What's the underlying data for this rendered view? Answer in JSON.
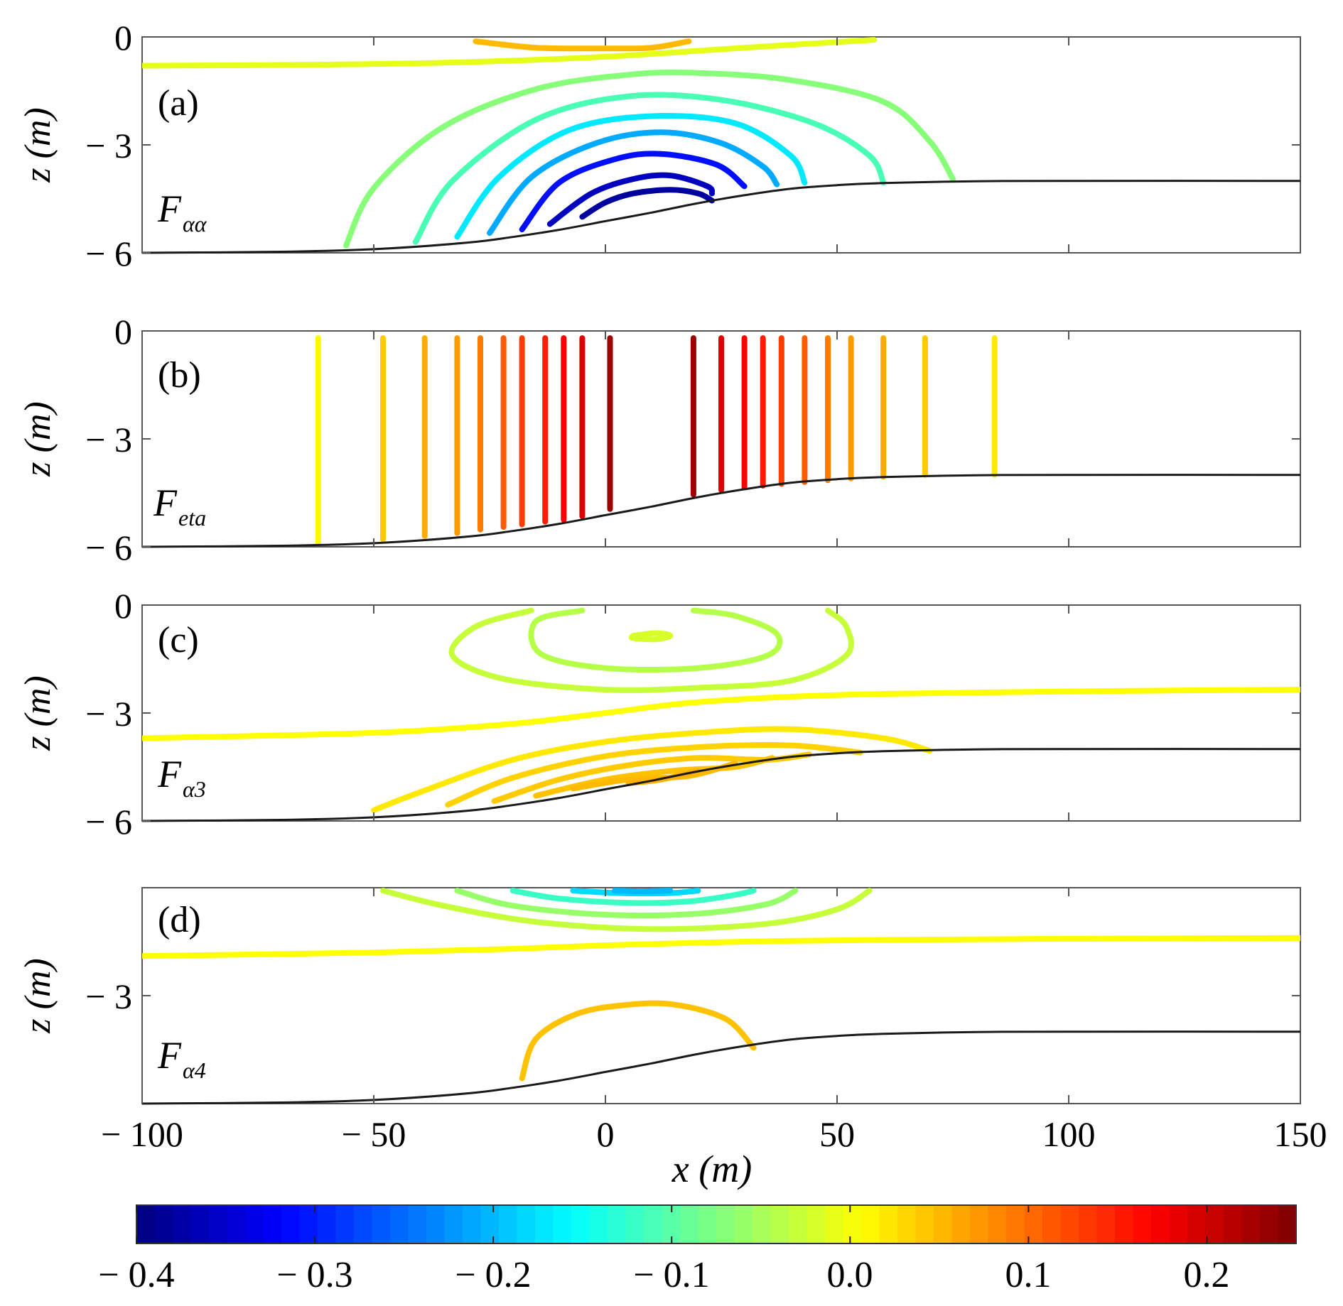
{
  "chart_data": {
    "type": "contour",
    "panels": [
      {
        "id": "a",
        "label": "(a)",
        "quantity_main": "F",
        "quantity_sub": "αα",
        "ylabel": "z (m)",
        "yticks": [
          "0",
          "− 3",
          "− 6"
        ],
        "show_zero_tick": true
      },
      {
        "id": "b",
        "label": "(b)",
        "quantity_main": "F",
        "quantity_sub": "eta",
        "ylabel": "z (m)",
        "yticks": [
          "0",
          "− 3",
          "− 6"
        ],
        "show_zero_tick": true
      },
      {
        "id": "c",
        "label": "(c)",
        "quantity_main": "F",
        "quantity_sub": "α3",
        "ylabel": "z (m)",
        "yticks": [
          "0",
          "− 3",
          "− 6"
        ],
        "show_zero_tick": true
      },
      {
        "id": "d",
        "label": "(d)",
        "quantity_main": "F",
        "quantity_sub": "α4",
        "ylabel": "z (m)",
        "yticks": [
          "− 3"
        ],
        "show_zero_tick": false
      }
    ],
    "xlabel": "x (m)",
    "xlim": [
      -100,
      150
    ],
    "ylim": [
      -6,
      0
    ],
    "xticks": [
      -100,
      -50,
      0,
      50,
      100,
      150
    ],
    "xtick_labels": [
      "− 100",
      "− 50",
      "0",
      "50",
      "100",
      "150"
    ],
    "colorbar": {
      "range": [
        -0.4,
        0.25
      ],
      "ticks": [
        -0.4,
        -0.3,
        -0.2,
        -0.1,
        0.0,
        0.1,
        0.2
      ],
      "tick_labels": [
        "− 0.4",
        "− 0.3",
        "− 0.2",
        "− 0.1",
        "0.0",
        "0.1",
        "0.2"
      ],
      "colormap": "jet"
    },
    "bathymetry": {
      "x": [
        -100,
        -70,
        -50,
        -30,
        -20,
        -10,
        0,
        10,
        20,
        30,
        40,
        50,
        60,
        80,
        100,
        150
      ],
      "z": [
        -6.0,
        -5.97,
        -5.9,
        -5.72,
        -5.56,
        -5.36,
        -5.12,
        -4.88,
        -4.62,
        -4.4,
        -4.22,
        -4.12,
        -4.06,
        -4.01,
        -4.0,
        -4.0
      ]
    },
    "contours": {
      "a": [
        {
          "v": 0.05,
          "pts": [
            [
              -28,
              -0.12
            ],
            [
              -15,
              -0.3
            ],
            [
              0,
              -0.32
            ],
            [
              10,
              -0.3
            ],
            [
              18,
              -0.12
            ]
          ]
        },
        {
          "v": -0.01,
          "pts": [
            [
              -100,
              -0.8
            ],
            [
              -60,
              -0.77
            ],
            [
              -30,
              -0.7
            ],
            [
              0,
              -0.55
            ],
            [
              30,
              -0.3
            ],
            [
              58,
              -0.08
            ]
          ]
        },
        {
          "v": -0.07,
          "pts": [
            [
              -56,
              -5.8
            ],
            [
              -50,
              -4.2
            ],
            [
              -35,
              -2.5
            ],
            [
              -15,
              -1.45
            ],
            [
              5,
              -1.05
            ],
            [
              20,
              -1.0
            ],
            [
              40,
              -1.2
            ],
            [
              60,
              -1.8
            ],
            [
              70,
              -2.9
            ],
            [
              75,
              -3.95
            ]
          ]
        },
        {
          "v": -0.11,
          "pts": [
            [
              -41,
              -5.7
            ],
            [
              -33,
              -4.0
            ],
            [
              -15,
              -2.3
            ],
            [
              5,
              -1.65
            ],
            [
              25,
              -1.75
            ],
            [
              45,
              -2.4
            ],
            [
              57,
              -3.3
            ],
            [
              60,
              -4.05
            ]
          ]
        },
        {
          "v": -0.17,
          "pts": [
            [
              -32,
              -5.55
            ],
            [
              -23,
              -3.9
            ],
            [
              -8,
              -2.6
            ],
            [
              10,
              -2.2
            ],
            [
              28,
              -2.4
            ],
            [
              40,
              -3.3
            ],
            [
              43,
              -4.05
            ]
          ]
        },
        {
          "v": -0.21,
          "pts": [
            [
              -25,
              -5.45
            ],
            [
              -16,
              -3.9
            ],
            [
              -2,
              -2.95
            ],
            [
              12,
              -2.65
            ],
            [
              25,
              -2.95
            ],
            [
              34,
              -3.6
            ],
            [
              37,
              -4.1
            ]
          ]
        },
        {
          "v": -0.31,
          "pts": [
            [
              -18,
              -5.35
            ],
            [
              -10,
              -4.05
            ],
            [
              2,
              -3.4
            ],
            [
              12,
              -3.25
            ],
            [
              24,
              -3.55
            ],
            [
              30,
              -4.15
            ]
          ]
        },
        {
          "v": -0.36,
          "pts": [
            [
              -12,
              -5.2
            ],
            [
              -3,
              -4.35
            ],
            [
              6,
              -3.95
            ],
            [
              14,
              -3.85
            ],
            [
              22,
              -4.15
            ],
            [
              23,
              -4.35
            ]
          ]
        },
        {
          "v": -0.38,
          "pts": [
            [
              -5,
              -5.0
            ],
            [
              0,
              -4.6
            ],
            [
              6,
              -4.35
            ],
            [
              14,
              -4.25
            ],
            [
              20,
              -4.35
            ],
            [
              23,
              -4.55
            ]
          ]
        }
      ],
      "b": [
        {
          "v": 0.01,
          "pts": [
            [
              -62,
              -0.2
            ],
            [
              -62,
              -5.9
            ]
          ]
        },
        {
          "v": 0.04,
          "pts": [
            [
              -48,
              -0.2
            ],
            [
              -48,
              -5.8
            ]
          ]
        },
        {
          "v": 0.06,
          "pts": [
            [
              -39,
              -0.2
            ],
            [
              -39,
              -5.7
            ]
          ]
        },
        {
          "v": 0.07,
          "pts": [
            [
              -32,
              -0.2
            ],
            [
              -32,
              -5.62
            ]
          ]
        },
        {
          "v": 0.09,
          "pts": [
            [
              -27,
              -0.2
            ],
            [
              -27,
              -5.52
            ]
          ]
        },
        {
          "v": 0.11,
          "pts": [
            [
              -22,
              -0.2
            ],
            [
              -22,
              -5.45
            ]
          ]
        },
        {
          "v": 0.13,
          "pts": [
            [
              -18,
              -0.2
            ],
            [
              -18,
              -5.38
            ]
          ]
        },
        {
          "v": 0.15,
          "pts": [
            [
              -13,
              -0.2
            ],
            [
              -13,
              -5.3
            ]
          ]
        },
        {
          "v": 0.17,
          "pts": [
            [
              -9,
              -0.2
            ],
            [
              -9,
              -5.25
            ]
          ]
        },
        {
          "v": 0.19,
          "pts": [
            [
              -5,
              -0.2
            ],
            [
              -5,
              -5.15
            ]
          ]
        },
        {
          "v": 0.23,
          "pts": [
            [
              1,
              -0.2
            ],
            [
              1,
              -4.95
            ]
          ]
        },
        {
          "v": 0.23,
          "pts": [
            [
              19,
              -0.2
            ],
            [
              19,
              -4.55
            ]
          ]
        },
        {
          "v": 0.19,
          "pts": [
            [
              25,
              -0.2
            ],
            [
              25,
              -4.42
            ]
          ]
        },
        {
          "v": 0.17,
          "pts": [
            [
              30,
              -0.2
            ],
            [
              30,
              -4.35
            ]
          ]
        },
        {
          "v": 0.15,
          "pts": [
            [
              34,
              -0.2
            ],
            [
              34,
              -4.3
            ]
          ]
        },
        {
          "v": 0.13,
          "pts": [
            [
              38,
              -0.2
            ],
            [
              38,
              -4.25
            ]
          ]
        },
        {
          "v": 0.11,
          "pts": [
            [
              43,
              -0.2
            ],
            [
              43,
              -4.2
            ]
          ]
        },
        {
          "v": 0.09,
          "pts": [
            [
              48,
              -0.2
            ],
            [
              48,
              -4.15
            ]
          ]
        },
        {
          "v": 0.07,
          "pts": [
            [
              53,
              -0.2
            ],
            [
              53,
              -4.1
            ]
          ]
        },
        {
          "v": 0.06,
          "pts": [
            [
              60,
              -0.2
            ],
            [
              60,
              -4.05
            ]
          ]
        },
        {
          "v": 0.04,
          "pts": [
            [
              69,
              -0.2
            ],
            [
              69,
              -4.0
            ]
          ]
        },
        {
          "v": 0.02,
          "pts": [
            [
              84,
              -0.2
            ],
            [
              84,
              -4.0
            ]
          ]
        }
      ],
      "c": [
        {
          "v": -0.03,
          "pts": [
            [
              -16,
              -0.15
            ],
            [
              -28,
              -0.6
            ],
            [
              -33,
              -1.4
            ],
            [
              -22,
              -2.05
            ],
            [
              0,
              -2.35
            ],
            [
              20,
              -2.3
            ],
            [
              40,
              -2.1
            ],
            [
              52,
              -1.4
            ],
            [
              52,
              -0.6
            ],
            [
              48,
              -0.15
            ]
          ]
        },
        {
          "v": -0.04,
          "pts": [
            [
              -5,
              -0.15
            ],
            [
              -15,
              -0.45
            ],
            [
              -14,
              -1.35
            ],
            [
              0,
              -1.75
            ],
            [
              20,
              -1.75
            ],
            [
              35,
              -1.4
            ],
            [
              37,
              -0.8
            ],
            [
              28,
              -0.3
            ],
            [
              19,
              -0.15
            ]
          ]
        },
        {
          "v": -0.02,
          "pts": [
            [
              6,
              -0.85
            ],
            [
              11,
              -0.78
            ],
            [
              14,
              -0.85
            ],
            [
              11,
              -0.95
            ],
            [
              6,
              -0.92
            ],
            [
              6,
              -0.85
            ]
          ]
        },
        {
          "v": 0.005,
          "pts": [
            [
              -100,
              -3.7
            ],
            [
              -50,
              -3.55
            ],
            [
              -20,
              -3.3
            ],
            [
              0,
              -3.0
            ],
            [
              20,
              -2.7
            ],
            [
              50,
              -2.5
            ],
            [
              100,
              -2.4
            ],
            [
              150,
              -2.35
            ]
          ]
        },
        {
          "v": 0.02,
          "pts": [
            [
              -50,
              -5.7
            ],
            [
              -40,
              -5.2
            ],
            [
              -20,
              -4.3
            ],
            [
              0,
              -3.8
            ],
            [
              20,
              -3.55
            ],
            [
              40,
              -3.45
            ],
            [
              60,
              -3.7
            ],
            [
              70,
              -4.05
            ]
          ]
        },
        {
          "v": 0.035,
          "pts": [
            [
              -34,
              -5.55
            ],
            [
              -20,
              -4.8
            ],
            [
              0,
              -4.2
            ],
            [
              20,
              -3.95
            ],
            [
              40,
              -3.9
            ],
            [
              55,
              -4.1
            ]
          ]
        },
        {
          "v": 0.04,
          "pts": [
            [
              -24,
              -5.45
            ],
            [
              -10,
              -4.85
            ],
            [
              5,
              -4.45
            ],
            [
              20,
              -4.25
            ],
            [
              35,
              -4.3
            ],
            [
              44,
              -4.15
            ]
          ]
        },
        {
          "v": 0.045,
          "pts": [
            [
              -15,
              -5.3
            ],
            [
              0,
              -4.85
            ],
            [
              15,
              -4.6
            ],
            [
              28,
              -4.5
            ],
            [
              36,
              -4.25
            ]
          ]
        },
        {
          "v": 0.05,
          "pts": [
            [
              -7,
              -5.1
            ],
            [
              5,
              -4.85
            ],
            [
              18,
              -4.75
            ],
            [
              28,
              -4.4
            ]
          ]
        },
        {
          "v": 0.055,
          "pts": [
            [
              5,
              -4.95
            ],
            [
              12,
              -4.85
            ],
            [
              20,
              -4.6
            ]
          ]
        }
      ],
      "d": [
        {
          "v": -0.03,
          "pts": [
            [
              -48,
              -0.08
            ],
            [
              -35,
              -0.5
            ],
            [
              -15,
              -0.95
            ],
            [
              10,
              -1.15
            ],
            [
              35,
              -1.0
            ],
            [
              50,
              -0.6
            ],
            [
              57,
              -0.08
            ]
          ]
        },
        {
          "v": -0.06,
          "pts": [
            [
              -32,
              -0.08
            ],
            [
              -20,
              -0.5
            ],
            [
              0,
              -0.75
            ],
            [
              20,
              -0.72
            ],
            [
              35,
              -0.45
            ],
            [
              41,
              -0.08
            ]
          ]
        },
        {
          "v": -0.12,
          "pts": [
            [
              -20,
              -0.08
            ],
            [
              -10,
              -0.3
            ],
            [
              5,
              -0.42
            ],
            [
              18,
              -0.38
            ],
            [
              28,
              -0.2
            ],
            [
              32,
              -0.08
            ]
          ]
        },
        {
          "v": -0.18,
          "pts": [
            [
              -7,
              -0.08
            ],
            [
              3,
              -0.15
            ],
            [
              14,
              -0.15
            ],
            [
              20,
              -0.08
            ]
          ]
        },
        {
          "v": -0.2,
          "pts": [
            [
              2,
              -0.08
            ],
            [
              8,
              -0.1
            ],
            [
              14,
              -0.08
            ]
          ]
        },
        {
          "v": 0.005,
          "pts": [
            [
              -100,
              -1.9
            ],
            [
              -50,
              -1.8
            ],
            [
              -20,
              -1.7
            ],
            [
              0,
              -1.6
            ],
            [
              30,
              -1.5
            ],
            [
              60,
              -1.45
            ],
            [
              100,
              -1.42
            ],
            [
              150,
              -1.4
            ]
          ]
        },
        {
          "v": 0.045,
          "pts": [
            [
              -18,
              -5.3
            ],
            [
              -15,
              -4.2
            ],
            [
              -6,
              -3.5
            ],
            [
              5,
              -3.25
            ],
            [
              15,
              -3.25
            ],
            [
              26,
              -3.65
            ],
            [
              32,
              -4.45
            ]
          ]
        }
      ]
    }
  }
}
